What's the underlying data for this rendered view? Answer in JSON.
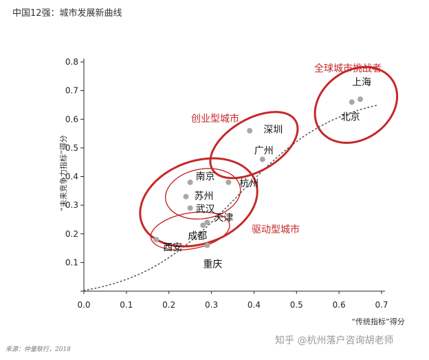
{
  "title": "中国12强：城市发展新曲线",
  "source": "来源：仲量联行，2018",
  "watermark": "知乎 @杭州落户咨询胡老师",
  "chart_data": {
    "type": "scatter",
    "xlabel": "“传统指标”得分",
    "ylabel": "“未来竞争力指标”得分",
    "xlim": [
      0,
      0.7
    ],
    "ylim": [
      0,
      0.8
    ],
    "xticks": [
      "0.0",
      "0.1",
      "0.2",
      "0.3",
      "0.4",
      "0.5",
      "0.6",
      "0.7"
    ],
    "yticks": [
      "0.1",
      "0.2",
      "0.3",
      "0.4",
      "0.5",
      "0.6",
      "0.7",
      "0.8"
    ],
    "points": [
      {
        "label": "上海",
        "x": 0.65,
        "y": 0.67
      },
      {
        "label": "北京",
        "x": 0.63,
        "y": 0.66
      },
      {
        "label": "深圳",
        "x": 0.39,
        "y": 0.56
      },
      {
        "label": "广州",
        "x": 0.42,
        "y": 0.46
      },
      {
        "label": "杭州",
        "x": 0.34,
        "y": 0.38
      },
      {
        "label": "南京",
        "x": 0.25,
        "y": 0.38
      },
      {
        "label": "苏州",
        "x": 0.24,
        "y": 0.33
      },
      {
        "label": "武汉",
        "x": 0.25,
        "y": 0.29
      },
      {
        "label": "天津",
        "x": 0.29,
        "y": 0.24
      },
      {
        "label": "成都",
        "x": 0.28,
        "y": 0.23
      },
      {
        "label": "西安",
        "x": 0.17,
        "y": 0.18
      },
      {
        "label": "重庆",
        "x": 0.29,
        "y": 0.16
      }
    ],
    "groups": [
      {
        "label": "全球城市挑战者"
      },
      {
        "label": "创业型城市"
      },
      {
        "label": "驱动型城市"
      }
    ],
    "trend_curve": "dotted"
  }
}
